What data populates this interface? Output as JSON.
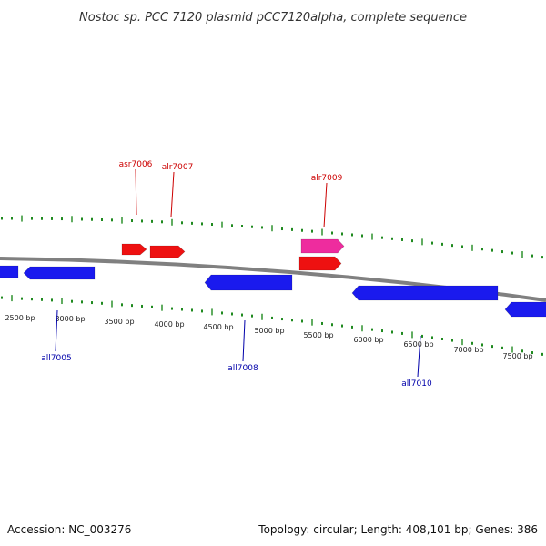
{
  "title": "Nostoc sp. PCC 7120 plasmid pCC7120alpha, complete sequence",
  "footer": {
    "accession": "Accession: NC_003276",
    "summary": "Topology: circular; Length: 408,101 bp; Genes: 386"
  },
  "colors": {
    "backbone": "#808080",
    "tick": "#1f8a1f",
    "forward_gene": "#ee1111",
    "forward_gene_alt": "#ee2c9e",
    "reverse_gene": "#1a1aee",
    "forward_label": "#cc0000",
    "reverse_label": "#0000aa"
  },
  "scale_labels": [
    "2500 bp",
    "3000 bp",
    "3500 bp",
    "4000 bp",
    "4500 bp",
    "5000 bp",
    "5500 bp",
    "6000 bp",
    "6500 bp",
    "7000 bp",
    "7500 bp"
  ],
  "genes_forward": [
    {
      "label": "asr7006",
      "color": "#ee1111",
      "labeled": true
    },
    {
      "label": "alr7007",
      "color": "#ee1111",
      "labeled": true
    },
    {
      "label": "alr7009",
      "color": "#ee2c9e",
      "labeled": true
    },
    {
      "label": "",
      "color": "#ee1111",
      "labeled": false
    }
  ],
  "genes_reverse": [
    {
      "label": "",
      "labeled": false
    },
    {
      "label": "all7005",
      "labeled": true
    },
    {
      "label": "all7008",
      "labeled": true
    },
    {
      "label": "all7010",
      "labeled": true
    },
    {
      "label": "",
      "labeled": false
    }
  ]
}
